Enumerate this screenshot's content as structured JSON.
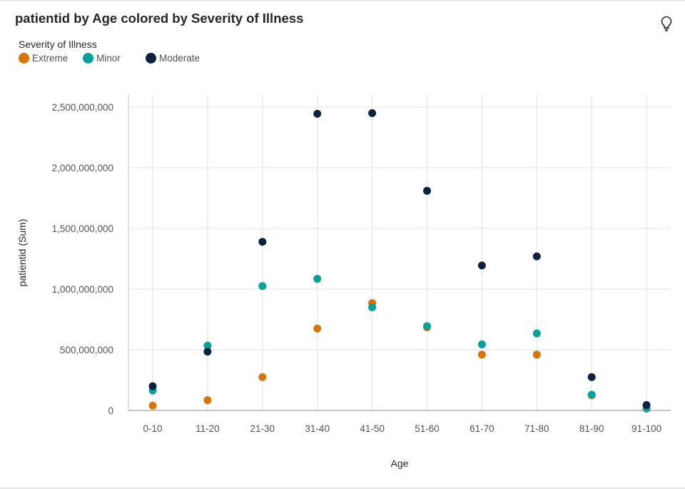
{
  "title": "patientid by Age colored by Severity of Illness",
  "insight_icon": "lightbulb-icon",
  "legend": {
    "title": "Severity of Illness",
    "items": [
      {
        "label": "Extreme",
        "color": "#d9740b"
      },
      {
        "label": "Minor",
        "color": "#08a09a"
      },
      {
        "label": "Moderate",
        "color": "#0c2340"
      }
    ]
  },
  "chart_data": {
    "type": "scatter",
    "title": "patientid by Age colored by Severity of Illness",
    "xlabel": "Age",
    "ylabel": "patientid (Sum)",
    "categories": [
      "0-10",
      "11-20",
      "21-30",
      "31-40",
      "41-50",
      "51-60",
      "61-70",
      "71-80",
      "81-90",
      "91-100"
    ],
    "ylim": [
      0,
      2500000000
    ],
    "yticks": [
      0,
      500000000,
      1000000000,
      1500000000,
      2000000000,
      2500000000
    ],
    "ytick_labels": [
      "0",
      "500,000,000",
      "1,000,000,000",
      "1,500,000,000",
      "2,000,000,000",
      "2,500,000,000"
    ],
    "grid": true,
    "legend_position": "top-left",
    "series": [
      {
        "name": "Extreme",
        "color": "#d9740b",
        "values": [
          40000000,
          85000000,
          275000000,
          675000000,
          885000000,
          685000000,
          460000000,
          460000000,
          125000000,
          15000000
        ]
      },
      {
        "name": "Minor",
        "color": "#08a09a",
        "values": [
          165000000,
          535000000,
          1025000000,
          1085000000,
          850000000,
          695000000,
          545000000,
          635000000,
          130000000,
          20000000
        ]
      },
      {
        "name": "Moderate",
        "color": "#0c2340",
        "values": [
          200000000,
          485000000,
          1390000000,
          2445000000,
          2450000000,
          1810000000,
          1195000000,
          1270000000,
          275000000,
          45000000
        ]
      }
    ]
  }
}
